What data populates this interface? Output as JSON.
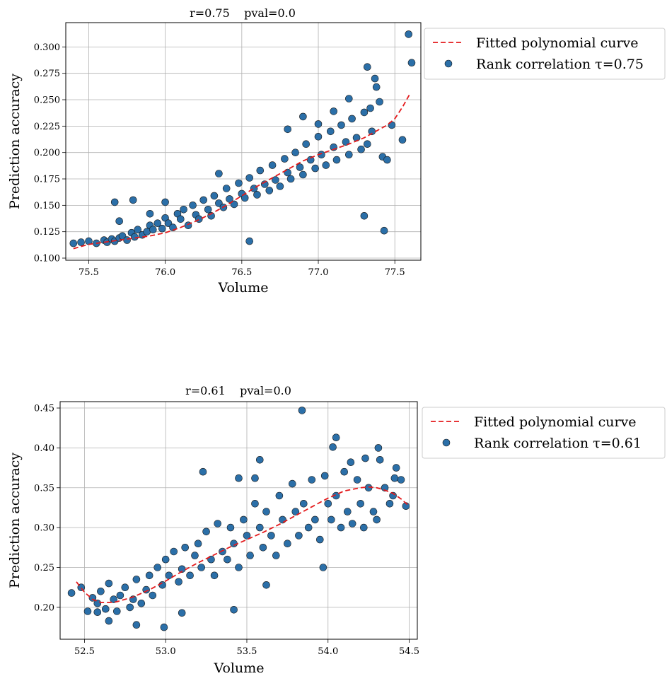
{
  "chart_data": [
    {
      "type": "scatter",
      "title": "r=0.75    pval=0.0",
      "xlabel": "Volume",
      "ylabel": "Prediction accuracy",
      "xlim": [
        75.35,
        77.67
      ],
      "ylim": [
        0.098,
        0.323
      ],
      "xticks": [
        75.5,
        76.0,
        76.5,
        77.0,
        77.5
      ],
      "xtick_labels": [
        "75.5",
        "76.0",
        "76.5",
        "77.0",
        "77.5"
      ],
      "yticks": [
        0.1,
        0.125,
        0.15,
        0.175,
        0.2,
        0.225,
        0.25,
        0.275,
        0.3
      ],
      "ytick_labels": [
        "0.100",
        "0.125",
        "0.150",
        "0.175",
        "0.200",
        "0.225",
        "0.250",
        "0.275",
        "0.300"
      ],
      "grid": true,
      "legend_placement": "outside-top-right",
      "series": [
        {
          "name": "Fitted polynomial curve",
          "kind": "line",
          "style": "dashed",
          "color": "#e41a1c",
          "x": [
            75.4,
            75.5,
            75.6,
            75.7,
            75.8,
            75.9,
            76.0,
            76.1,
            76.2,
            76.3,
            76.4,
            76.5,
            76.6,
            76.7,
            76.8,
            76.9,
            77.0,
            77.1,
            77.2,
            77.3,
            77.4,
            77.45,
            77.5,
            77.55,
            77.6
          ],
          "y": [
            0.109,
            0.113,
            0.115,
            0.117,
            0.119,
            0.121,
            0.124,
            0.129,
            0.135,
            0.142,
            0.15,
            0.159,
            0.168,
            0.176,
            0.184,
            0.192,
            0.198,
            0.203,
            0.208,
            0.214,
            0.222,
            0.226,
            0.232,
            0.243,
            0.256
          ]
        },
        {
          "name": "Rank correlation τ=0.75",
          "kind": "scatter",
          "color": "#2b6fa8",
          "x": [
            75.4,
            75.45,
            75.5,
            75.55,
            75.6,
            75.62,
            75.65,
            75.67,
            75.7,
            75.72,
            75.75,
            75.78,
            75.8,
            75.82,
            75.85,
            75.88,
            75.9,
            75.92,
            75.95,
            75.98,
            76.0,
            76.02,
            76.05,
            76.08,
            76.1,
            76.12,
            76.15,
            76.18,
            76.2,
            76.22,
            76.25,
            76.28,
            76.3,
            76.32,
            76.35,
            76.38,
            76.4,
            76.42,
            76.45,
            76.48,
            76.5,
            76.52,
            76.55,
            76.58,
            76.6,
            76.62,
            76.65,
            76.68,
            76.7,
            76.72,
            76.75,
            76.78,
            76.8,
            76.82,
            76.85,
            76.88,
            76.9,
            76.92,
            76.95,
            76.98,
            77.0,
            77.02,
            77.05,
            77.08,
            77.1,
            77.12,
            77.15,
            77.18,
            77.2,
            77.22,
            77.25,
            77.28,
            77.3,
            77.32,
            77.35,
            77.38,
            77.4,
            77.42,
            77.45,
            77.48,
            77.55,
            77.59,
            77.61,
            75.67,
            75.79,
            76.55,
            77.3,
            77.43,
            77.32,
            77.37,
            77.2,
            77.34,
            77.1,
            76.9,
            76.35,
            76.0,
            75.9,
            75.7,
            76.8,
            77.0
          ],
          "y": [
            0.114,
            0.115,
            0.116,
            0.114,
            0.117,
            0.115,
            0.118,
            0.116,
            0.119,
            0.121,
            0.117,
            0.124,
            0.12,
            0.127,
            0.122,
            0.125,
            0.131,
            0.127,
            0.133,
            0.128,
            0.138,
            0.133,
            0.129,
            0.142,
            0.137,
            0.146,
            0.131,
            0.15,
            0.141,
            0.137,
            0.155,
            0.146,
            0.14,
            0.159,
            0.152,
            0.148,
            0.166,
            0.156,
            0.151,
            0.171,
            0.161,
            0.157,
            0.176,
            0.166,
            0.16,
            0.183,
            0.17,
            0.164,
            0.188,
            0.174,
            0.168,
            0.194,
            0.181,
            0.175,
            0.2,
            0.186,
            0.179,
            0.208,
            0.193,
            0.185,
            0.215,
            0.198,
            0.188,
            0.22,
            0.205,
            0.193,
            0.226,
            0.21,
            0.198,
            0.232,
            0.214,
            0.203,
            0.238,
            0.208,
            0.22,
            0.262,
            0.248,
            0.196,
            0.193,
            0.226,
            0.212,
            0.312,
            0.285,
            0.153,
            0.155,
            0.116,
            0.14,
            0.126,
            0.281,
            0.27,
            0.251,
            0.242,
            0.239,
            0.234,
            0.18,
            0.153,
            0.142,
            0.135,
            0.222,
            0.227
          ]
        }
      ]
    },
    {
      "type": "scatter",
      "title": "r=0.61    pval=0.0",
      "xlabel": "Volume",
      "ylabel": "Prediction accuracy",
      "xlim": [
        52.35,
        54.55
      ],
      "ylim": [
        0.16,
        0.458
      ],
      "xticks": [
        52.5,
        53.0,
        53.5,
        54.0,
        54.5
      ],
      "xtick_labels": [
        "52.5",
        "53.0",
        "53.5",
        "54.0",
        "54.5"
      ],
      "yticks": [
        0.2,
        0.25,
        0.3,
        0.35,
        0.4,
        0.45
      ],
      "ytick_labels": [
        "0.20",
        "0.25",
        "0.30",
        "0.35",
        "0.40",
        "0.45"
      ],
      "grid": true,
      "legend_placement": "outside-top-right",
      "series": [
        {
          "name": "Fitted polynomial curve",
          "kind": "line",
          "style": "dashed",
          "color": "#e41a1c",
          "x": [
            52.45,
            52.5,
            52.55,
            52.6,
            52.65,
            52.7,
            52.8,
            52.9,
            53.0,
            53.1,
            53.2,
            53.3,
            53.4,
            53.5,
            53.6,
            53.7,
            53.8,
            53.9,
            54.0,
            54.1,
            54.2,
            54.25,
            54.3,
            54.35,
            54.4,
            54.45,
            54.5
          ],
          "y": [
            0.232,
            0.219,
            0.21,
            0.206,
            0.206,
            0.207,
            0.213,
            0.222,
            0.233,
            0.245,
            0.256,
            0.266,
            0.276,
            0.285,
            0.294,
            0.304,
            0.315,
            0.326,
            0.337,
            0.346,
            0.35,
            0.351,
            0.35,
            0.347,
            0.343,
            0.336,
            0.327
          ]
        },
        {
          "name": "Rank correlation τ=0.61",
          "kind": "scatter",
          "color": "#2b6fa8",
          "x": [
            52.42,
            52.48,
            52.52,
            52.55,
            52.58,
            52.6,
            52.63,
            52.65,
            52.68,
            52.7,
            52.72,
            52.75,
            52.78,
            52.8,
            52.82,
            52.85,
            52.88,
            52.9,
            52.92,
            52.95,
            52.98,
            53.0,
            53.02,
            53.05,
            53.08,
            53.1,
            53.12,
            53.15,
            53.18,
            53.2,
            53.22,
            53.25,
            53.28,
            53.3,
            53.32,
            53.35,
            53.38,
            53.4,
            53.42,
            53.45,
            53.48,
            53.5,
            53.52,
            53.55,
            53.58,
            53.6,
            53.62,
            53.65,
            53.68,
            53.7,
            53.72,
            53.75,
            53.78,
            53.8,
            53.82,
            53.85,
            53.88,
            53.9,
            53.92,
            53.95,
            53.98,
            54.0,
            54.02,
            54.05,
            54.08,
            54.1,
            54.12,
            54.15,
            54.18,
            54.2,
            54.22,
            54.25,
            54.28,
            54.3,
            54.32,
            54.35,
            54.38,
            54.4,
            54.42,
            54.45,
            54.48,
            53.84,
            54.05,
            54.03,
            53.23,
            53.45,
            53.55,
            53.58,
            54.31,
            54.14,
            54.23,
            54.41,
            52.99,
            53.42,
            53.62,
            53.97,
            52.65,
            52.82,
            53.1,
            52.58
          ],
          "y": [
            0.218,
            0.225,
            0.195,
            0.212,
            0.205,
            0.22,
            0.198,
            0.23,
            0.21,
            0.195,
            0.215,
            0.225,
            0.2,
            0.21,
            0.235,
            0.205,
            0.222,
            0.24,
            0.215,
            0.25,
            0.228,
            0.26,
            0.24,
            0.27,
            0.232,
            0.248,
            0.275,
            0.24,
            0.265,
            0.28,
            0.25,
            0.295,
            0.26,
            0.24,
            0.305,
            0.27,
            0.26,
            0.3,
            0.28,
            0.25,
            0.31,
            0.29,
            0.265,
            0.33,
            0.3,
            0.275,
            0.32,
            0.29,
            0.265,
            0.34,
            0.31,
            0.28,
            0.355,
            0.32,
            0.29,
            0.33,
            0.3,
            0.36,
            0.31,
            0.285,
            0.365,
            0.33,
            0.31,
            0.34,
            0.3,
            0.37,
            0.32,
            0.305,
            0.36,
            0.33,
            0.3,
            0.35,
            0.32,
            0.31,
            0.385,
            0.35,
            0.33,
            0.34,
            0.375,
            0.36,
            0.327,
            0.447,
            0.413,
            0.401,
            0.37,
            0.362,
            0.362,
            0.385,
            0.4,
            0.382,
            0.387,
            0.362,
            0.175,
            0.197,
            0.228,
            0.25,
            0.183,
            0.178,
            0.193,
            0.194
          ]
        }
      ]
    }
  ]
}
